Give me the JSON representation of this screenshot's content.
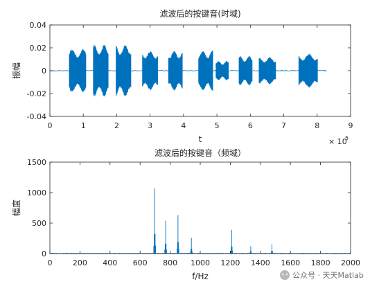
{
  "chart_data": [
    {
      "type": "line",
      "title": "滤波后的按键音(时域)",
      "xlabel": "t",
      "ylabel": "振幅",
      "xlim": [
        0,
        900000
      ],
      "ylim": [
        -0.04,
        0.04
      ],
      "x_ticks": [
        "0",
        "1",
        "2",
        "3",
        "4",
        "5",
        "6",
        "7",
        "8",
        "9"
      ],
      "x_tick_values": [
        0,
        100000,
        200000,
        300000,
        400000,
        500000,
        600000,
        700000,
        800000,
        900000
      ],
      "x_exponent_label": "× 10",
      "x_exponent_power": "5",
      "y_ticks": [
        "-0.04",
        "-0.02",
        "0",
        "0.02",
        "0.04"
      ],
      "y_tick_values": [
        -0.04,
        -0.02,
        0,
        0.02,
        0.04
      ],
      "grid": false,
      "series": [
        {
          "color": "#0072bd",
          "segments": [
            {
              "start": 58000,
              "end": 108000,
              "amp": 0.019
            },
            {
              "start": 130000,
              "end": 175000,
              "amp": 0.023
            },
            {
              "start": 198000,
              "end": 243000,
              "amp": 0.023
            },
            {
              "start": 277000,
              "end": 323000,
              "amp": 0.0175
            },
            {
              "start": 355000,
              "end": 397000,
              "amp": 0.0175
            },
            {
              "start": 445000,
              "end": 488000,
              "amp": 0.0178
            },
            {
              "start": 497000,
              "end": 535000,
              "amp": 0.0085
            },
            {
              "start": 566000,
              "end": 606000,
              "amp": 0.013
            },
            {
              "start": 626000,
              "end": 676000,
              "amp": 0.012
            },
            {
              "start": 745000,
              "end": 801000,
              "amp": 0.015
            }
          ]
        }
      ]
    },
    {
      "type": "line",
      "title": "滤波后的按键音（频域）",
      "xlabel": "f/Hz",
      "ylabel": "幅度",
      "xlim": [
        0,
        2000
      ],
      "ylim": [
        0,
        1500
      ],
      "x_ticks": [
        "0",
        "200",
        "400",
        "600",
        "800",
        "1000",
        "1200",
        "1400",
        "1600",
        "1800",
        "2000"
      ],
      "x_tick_values": [
        0,
        200,
        400,
        600,
        800,
        1000,
        1200,
        1400,
        1600,
        1800,
        2000
      ],
      "y_ticks": [
        "0",
        "500",
        "1000",
        "1500"
      ],
      "y_tick_values": [
        0,
        500,
        1000,
        1500
      ],
      "grid": false,
      "series": [
        {
          "color": "#0072bd",
          "peaks": [
            {
              "x": 697,
              "y": 1070
            },
            {
              "x": 770,
              "y": 540
            },
            {
              "x": 852,
              "y": 630
            },
            {
              "x": 941,
              "y": 260
            },
            {
              "x": 1209,
              "y": 390
            },
            {
              "x": 1336,
              "y": 120
            },
            {
              "x": 1477,
              "y": 150
            }
          ]
        }
      ]
    }
  ],
  "watermark": "公众号 · 天天Matlab"
}
